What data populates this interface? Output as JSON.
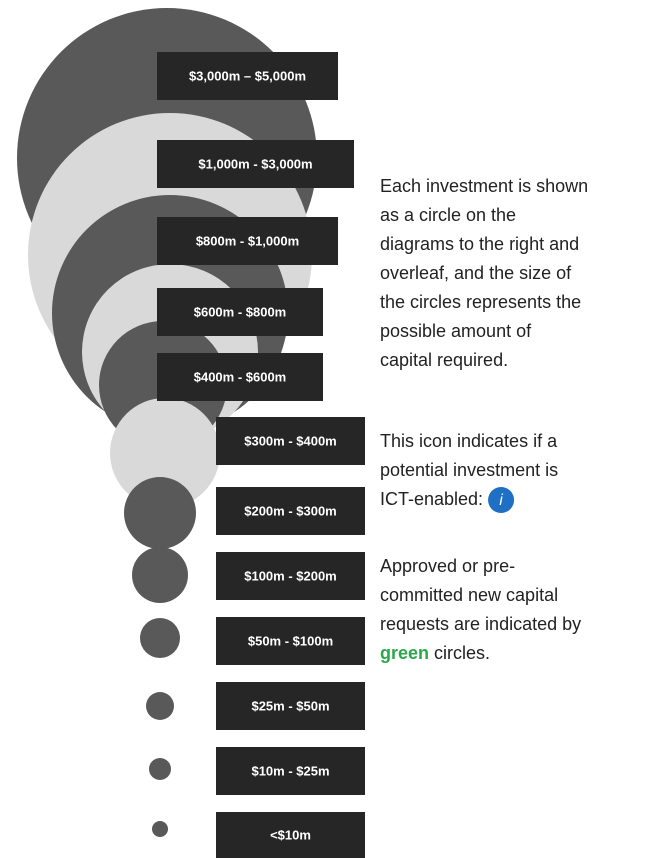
{
  "legend": {
    "ranges": [
      "$3,000m – $5,000m",
      "$1,000m - $3,000m",
      "$800m - $1,000m",
      "$600m - $800m",
      "$400m - $600m",
      "$300m - $400m",
      "$200m - $300m",
      "$100m - $200m",
      "$50m - $100m",
      "$25m - $50m",
      "$10m - $25m",
      "<$10m"
    ]
  },
  "notes": {
    "size_note": [
      "Each investment is shown",
      "as a circle on the",
      "diagrams to the right and",
      "overleaf, and the size of",
      "the circles represents the",
      "possible amount of",
      "capital required."
    ],
    "icon_note": [
      "This icon indicates if a",
      "potential investment is",
      "ICT-enabled:"
    ],
    "icon_letter": "i",
    "green_note": [
      "Approved or pre-",
      "committed new capital",
      "requests are indicated by"
    ],
    "green_word": "green",
    "green_tail": "circles."
  }
}
